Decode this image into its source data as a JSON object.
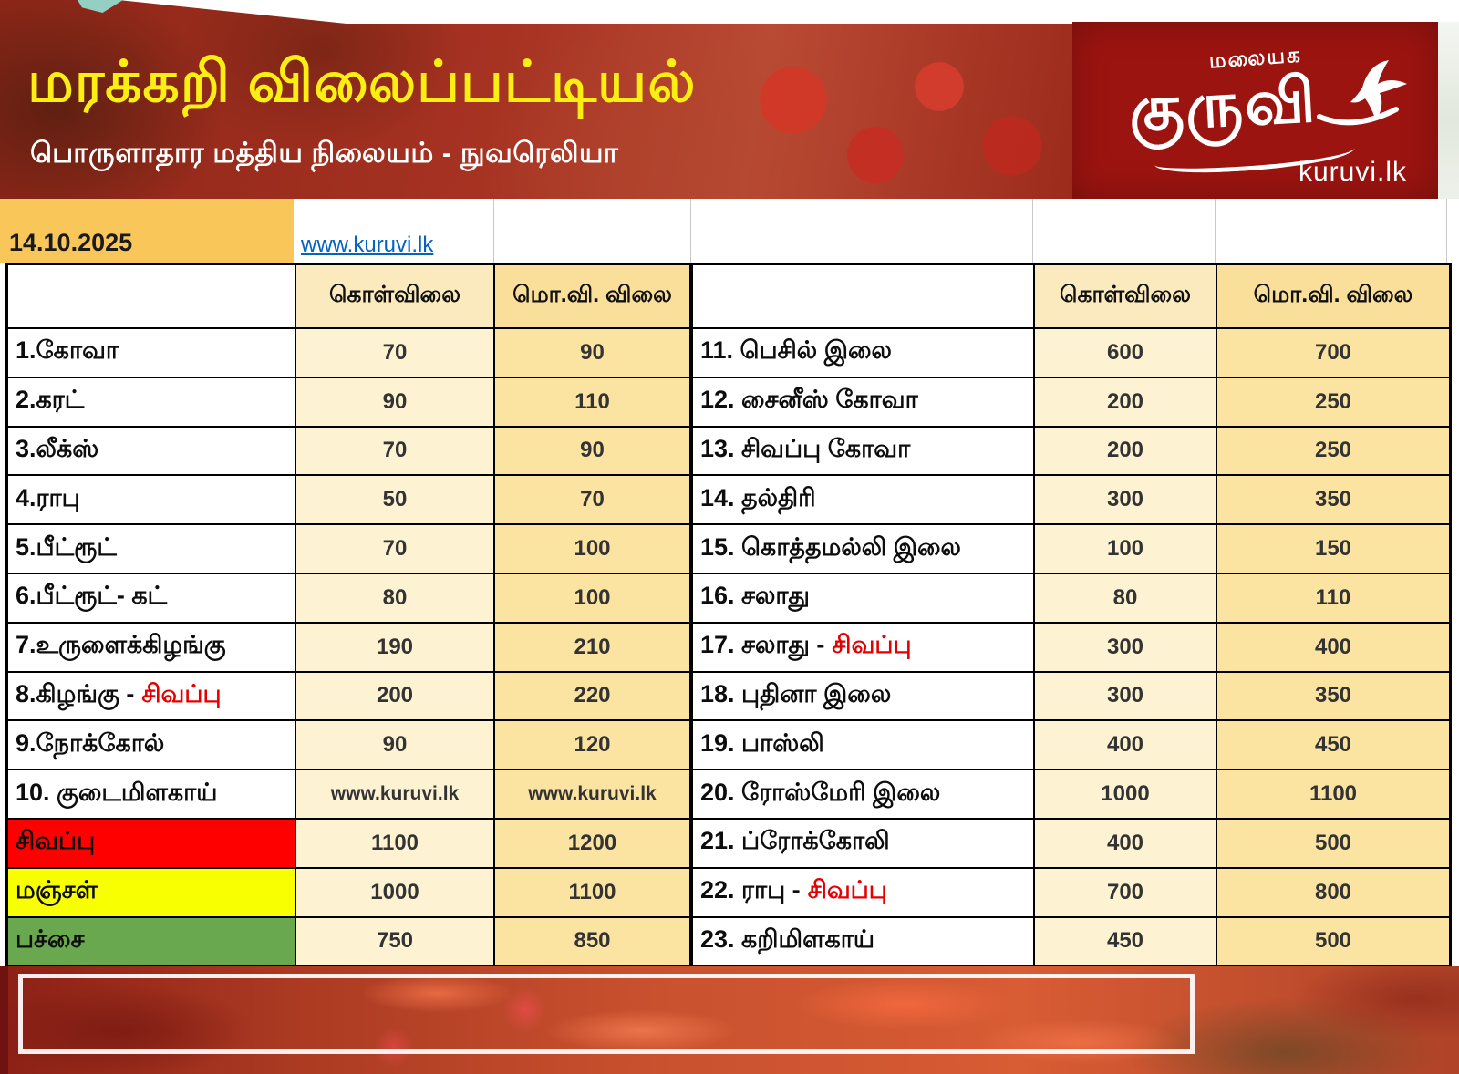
{
  "banner": {
    "title": "மரக்கறி விலைப்பட்டியல்",
    "subtitle": "பொருளாதார மத்திய நிலையம் - நுவரெலியா",
    "logo": {
      "tagline": "மலையக",
      "wordmark": "குருவி",
      "site": "kuruvi.lk"
    },
    "colors": {
      "title_yellow": "#fbee12",
      "banner_red": "#9e2c1d",
      "logo_box_red": "#9c1410"
    }
  },
  "meta": {
    "date": "14.10.2025",
    "website_link": "www.kuruvi.lk"
  },
  "table": {
    "headers": {
      "buy": "கொள்விலை",
      "wholesale": "மொ.வி. விலை"
    },
    "left_rows": [
      {
        "name": "1.கோவா",
        "buy": "70",
        "ws": "90"
      },
      {
        "name": "2.கரட்",
        "buy": "90",
        "ws": "110"
      },
      {
        "name": "3.லீக்ஸ்",
        "buy": "70",
        "ws": "90"
      },
      {
        "name": "4.ராபு",
        "buy": "50",
        "ws": "70"
      },
      {
        "name": "5.பீட்ரூட்",
        "buy": "70",
        "ws": "100"
      },
      {
        "name": "6.பீட்ரூட்- கட்",
        "buy": "80",
        "ws": "100"
      },
      {
        "name": "7.உருளைக்கிழங்கு",
        "buy": "190",
        "ws": "210"
      },
      {
        "name": "8.கிழங்கு - ",
        "name_red": "சிவப்பு",
        "buy": "200",
        "ws": "220"
      },
      {
        "name": "9.நோக்கோல்",
        "buy": "90",
        "ws": "120"
      },
      {
        "name": "10. குடைமிளகாய்",
        "buy": "www.kuruvi.lk",
        "ws": "www.kuruvi.lk",
        "watermark": true
      },
      {
        "name": "சிவப்பு",
        "bg": "#fe0000",
        "buy": "1100",
        "ws": "1200"
      },
      {
        "name": "மஞ்சள்",
        "bg": "#f8ff00",
        "buy": "1000",
        "ws": "1100"
      },
      {
        "name": "பச்சை",
        "bg": "#6aa84f",
        "buy": "750",
        "ws": "850"
      }
    ],
    "right_rows": [
      {
        "name": "11. பெசில் இலை",
        "buy": "600",
        "ws": "700"
      },
      {
        "name": "12. சைனீஸ் கோவா",
        "buy": "200",
        "ws": "250"
      },
      {
        "name": "13. சிவப்பு கோவா",
        "buy": "200",
        "ws": "250"
      },
      {
        "name": "14. தல்திரி",
        "buy": "300",
        "ws": "350"
      },
      {
        "name": "15. கொத்தமல்லி இலை",
        "buy": "100",
        "ws": "150"
      },
      {
        "name": "16. சலாது",
        "buy": "80",
        "ws": "110"
      },
      {
        "name": "17. சலாது - ",
        "name_red": "சிவப்பு",
        "buy": "300",
        "ws": "400"
      },
      {
        "name": "18. புதினா இலை",
        "buy": "300",
        "ws": "350"
      },
      {
        "name": "19. பாஸ்லி",
        "buy": "400",
        "ws": "450"
      },
      {
        "name": "20. ரோஸ்மேரி இலை",
        "buy": "1000",
        "ws": "1100"
      },
      {
        "name": "21. ப்ரோக்கோலி",
        "buy": "400",
        "ws": "500"
      },
      {
        "name": "22. ராபு - ",
        "name_red": "சிவப்பு",
        "buy": "700",
        "ws": "800"
      },
      {
        "name": "23. கறிமிளகாய்",
        "buy": "450",
        "ws": "500"
      }
    ],
    "highlight_red_word_color": "#e40000",
    "row_color_legend": {
      "red": "#fe0000",
      "yellow": "#f8ff00",
      "green": "#6aa84f"
    }
  }
}
